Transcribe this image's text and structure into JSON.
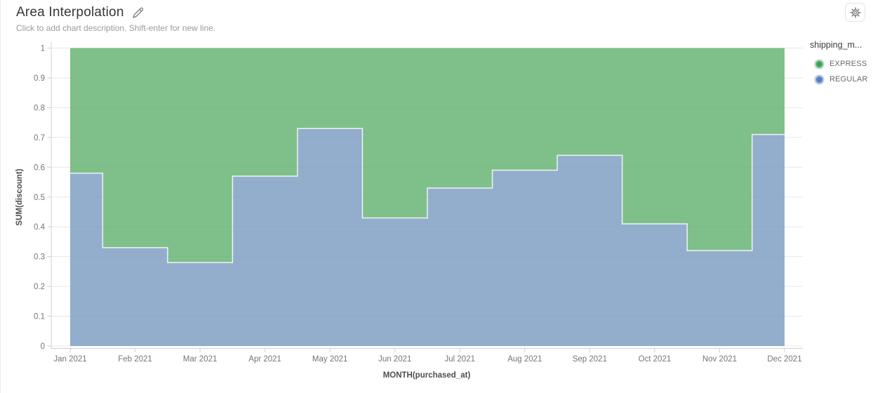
{
  "header": {
    "title": "Area Interpolation",
    "subtitle": "Click to add chart description. Shift-enter for new line."
  },
  "legend": {
    "title": "shipping_m...",
    "items": [
      {
        "label": "EXPRESS",
        "color": "#3aa45a",
        "ring": "#aed7b8"
      },
      {
        "label": "REGULAR",
        "color": "#5680be",
        "ring": "#b6c8e1"
      }
    ]
  },
  "chart_data": {
    "type": "area",
    "interpolation": "step-middle",
    "stacked": true,
    "normalized": true,
    "title": "Area Interpolation",
    "xlabel": "MONTH(purchased_at)",
    "ylabel": "SUM(discount)",
    "x": [
      "Jan 2021",
      "Feb 2021",
      "Mar 2021",
      "Apr 2021",
      "May 2021",
      "Jun 2021",
      "Jul 2021",
      "Aug 2021",
      "Sep 2021",
      "Oct 2021",
      "Nov 2021",
      "Dec 2021"
    ],
    "series": [
      {
        "name": "EXPRESS",
        "stroke": "#3aa45a",
        "fill": "#7fc08a",
        "values": [
          0.42,
          0.67,
          0.72,
          0.43,
          0.27,
          0.57,
          0.47,
          0.41,
          0.36,
          0.59,
          0.68,
          0.29
        ]
      },
      {
        "name": "REGULAR",
        "stroke": "#5680be",
        "fill": "#93aecd",
        "values": [
          0.58,
          0.33,
          0.28,
          0.57,
          0.73,
          0.43,
          0.53,
          0.59,
          0.64,
          0.41,
          0.32,
          0.71
        ]
      }
    ],
    "ylim": [
      0,
      1
    ],
    "yticks": [
      "0",
      "0.1",
      "0.2",
      "0.3",
      "0.4",
      "0.5",
      "0.6",
      "0.7",
      "0.8",
      "0.9",
      "1"
    ],
    "grid": true,
    "legend_position": "right",
    "colors": {
      "axis_line": "#cfcfcf",
      "tick_label": "#757575",
      "axis_title": "#4d4d4d",
      "boundary_stroke": "#f0f3f3"
    }
  }
}
